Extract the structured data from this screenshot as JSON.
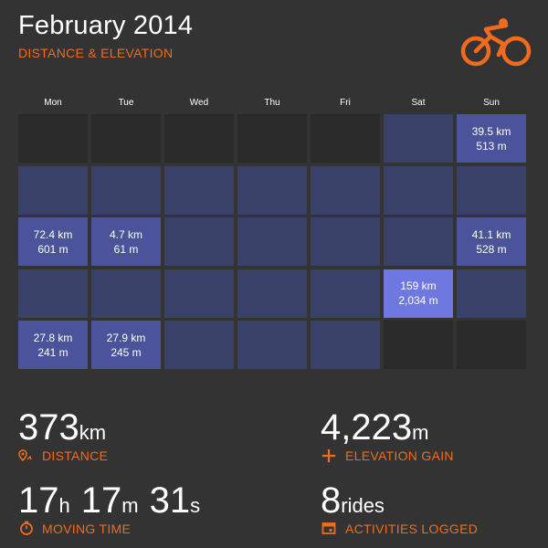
{
  "header": {
    "title": "February 2014",
    "subtitle": "DISTANCE & ELEVATION",
    "logo_icon": "cyclist-icon",
    "accent_color": "#f26b1d"
  },
  "weekdays": [
    "Mon",
    "Tue",
    "Wed",
    "Thu",
    "Fri",
    "Sat",
    "Sun"
  ],
  "calendar": [
    [
      {
        "state": "empty",
        "distance": "",
        "elevation": ""
      },
      {
        "state": "empty",
        "distance": "",
        "elevation": ""
      },
      {
        "state": "empty",
        "distance": "",
        "elevation": ""
      },
      {
        "state": "empty",
        "distance": "",
        "elevation": ""
      },
      {
        "state": "empty",
        "distance": "",
        "elevation": ""
      },
      {
        "state": "zero",
        "distance": "",
        "elevation": ""
      },
      {
        "state": "some",
        "distance": "39.5 km",
        "elevation": "513 m"
      }
    ],
    [
      {
        "state": "zero",
        "distance": "",
        "elevation": ""
      },
      {
        "state": "zero",
        "distance": "",
        "elevation": ""
      },
      {
        "state": "zero",
        "distance": "",
        "elevation": ""
      },
      {
        "state": "zero",
        "distance": "",
        "elevation": ""
      },
      {
        "state": "zero",
        "distance": "",
        "elevation": ""
      },
      {
        "state": "zero",
        "distance": "",
        "elevation": ""
      },
      {
        "state": "zero",
        "distance": "",
        "elevation": ""
      }
    ],
    [
      {
        "state": "some",
        "distance": "72.4 km",
        "elevation": "601 m"
      },
      {
        "state": "some",
        "distance": "4.7 km",
        "elevation": "61 m"
      },
      {
        "state": "zero",
        "distance": "",
        "elevation": ""
      },
      {
        "state": "zero",
        "distance": "",
        "elevation": ""
      },
      {
        "state": "zero",
        "distance": "",
        "elevation": ""
      },
      {
        "state": "zero",
        "distance": "",
        "elevation": ""
      },
      {
        "state": "some",
        "distance": "41.1 km",
        "elevation": "528 m"
      }
    ],
    [
      {
        "state": "zero",
        "distance": "",
        "elevation": ""
      },
      {
        "state": "zero",
        "distance": "",
        "elevation": ""
      },
      {
        "state": "zero",
        "distance": "",
        "elevation": ""
      },
      {
        "state": "zero",
        "distance": "",
        "elevation": ""
      },
      {
        "state": "zero",
        "distance": "",
        "elevation": ""
      },
      {
        "state": "high",
        "distance": "159 km",
        "elevation": "2,034 m"
      },
      {
        "state": "zero",
        "distance": "",
        "elevation": ""
      }
    ],
    [
      {
        "state": "some",
        "distance": "27.8 km",
        "elevation": "241 m"
      },
      {
        "state": "some",
        "distance": "27.9 km",
        "elevation": "245 m"
      },
      {
        "state": "zero",
        "distance": "",
        "elevation": ""
      },
      {
        "state": "zero",
        "distance": "",
        "elevation": ""
      },
      {
        "state": "zero",
        "distance": "",
        "elevation": ""
      },
      {
        "state": "empty",
        "distance": "",
        "elevation": ""
      },
      {
        "state": "empty",
        "distance": "",
        "elevation": ""
      }
    ]
  ],
  "colors": {
    "background": "#333333",
    "empty_day": "#2a2a2a",
    "no_activity_day": "#3a4169",
    "activity_day": "#4b549a",
    "top_activity_day": "#6f78e0"
  },
  "stats": {
    "distance": {
      "value": "373",
      "unit": "km",
      "label": "DISTANCE",
      "icon": "map-pin-icon"
    },
    "elevation": {
      "value": "4,223",
      "unit": "m",
      "label": "ELEVATION GAIN",
      "icon": "plus-icon"
    },
    "moving_time": {
      "hours": "17",
      "h_unit": "h",
      "minutes": "17",
      "m_unit": "m",
      "seconds": "31",
      "s_unit": "s",
      "label": "MOVING TIME",
      "icon": "stopwatch-icon"
    },
    "activities": {
      "value": "8",
      "unit": "rides",
      "label": "ACTIVITIES LOGGED",
      "icon": "calendar-icon"
    }
  }
}
